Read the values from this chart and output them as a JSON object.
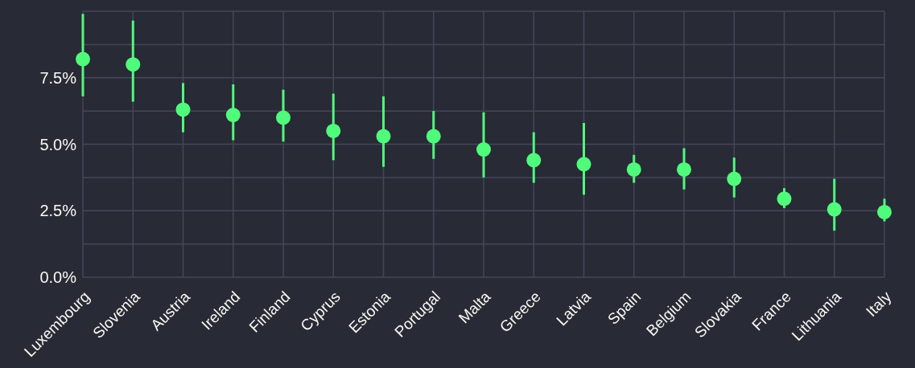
{
  "chart_data": {
    "type": "scatter",
    "categories": [
      "Luxembourg",
      "Slovenia",
      "Austria",
      "Ireland",
      "Finland",
      "Cyprus",
      "Estonia",
      "Portugal",
      "Malta",
      "Greece",
      "Latvia",
      "Spain",
      "Belgium",
      "Slovakia",
      "France",
      "Lithuania",
      "Italy"
    ],
    "values": [
      8.2,
      8.0,
      6.3,
      6.1,
      6.0,
      5.5,
      5.3,
      5.3,
      4.8,
      4.4,
      4.25,
      4.05,
      4.05,
      3.7,
      2.95,
      2.55,
      2.45
    ],
    "errors": [
      [
        6.8,
        9.9
      ],
      [
        6.6,
        9.65
      ],
      [
        5.45,
        7.3
      ],
      [
        5.15,
        7.25
      ],
      [
        5.1,
        7.05
      ],
      [
        4.4,
        6.9
      ],
      [
        4.15,
        6.8
      ],
      [
        4.45,
        6.25
      ],
      [
        3.75,
        6.2
      ],
      [
        3.55,
        5.45
      ],
      [
        3.1,
        5.8
      ],
      [
        3.55,
        4.6
      ],
      [
        3.3,
        4.85
      ],
      [
        3.0,
        4.5
      ],
      [
        2.6,
        3.35
      ],
      [
        1.75,
        3.7
      ],
      [
        2.1,
        2.95
      ]
    ],
    "color": "#50fa7b",
    "marker": "circle",
    "grid": true,
    "ylim": [
      0,
      10
    ],
    "yticks": [
      {
        "value": 0,
        "label": "0.0%"
      },
      {
        "value": 1.25,
        "label": null
      },
      {
        "value": 2.5,
        "label": "2.5%"
      },
      {
        "value": 3.75,
        "label": null
      },
      {
        "value": 5,
        "label": "5.0%"
      },
      {
        "value": 6.25,
        "label": null
      },
      {
        "value": 7.5,
        "label": "7.5%"
      },
      {
        "value": 8.75,
        "label": null
      }
    ]
  }
}
